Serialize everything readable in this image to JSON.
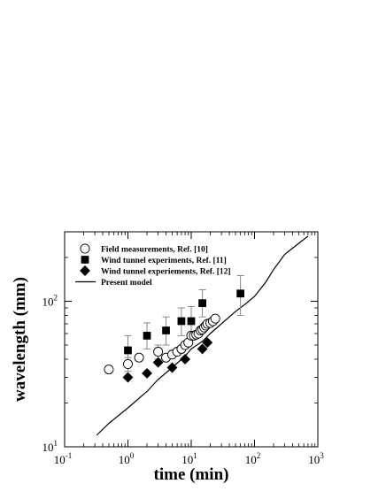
{
  "chart_data": {
    "type": "scatter",
    "xlabel": "time (min)",
    "ylabel": "wavelength (mm)",
    "xscale": "log",
    "yscale": "log",
    "xlim": [
      0.1,
      1000
    ],
    "ylim": [
      10,
      300
    ],
    "x_ticks": [
      {
        "base": "10",
        "exp": "-1"
      },
      {
        "base": "10",
        "exp": "0"
      },
      {
        "base": "10",
        "exp": "1"
      },
      {
        "base": "10",
        "exp": "2"
      },
      {
        "base": "10",
        "exp": "3"
      }
    ],
    "y_ticks": [
      {
        "value": 10,
        "base": "10",
        "exp": "1"
      },
      {
        "value": 100,
        "base": "10",
        "exp": "2"
      }
    ],
    "legend_position": "top-left",
    "series": [
      {
        "name": "Field measurements, Ref. [10]",
        "marker": "open-circle",
        "points": [
          {
            "x": 0.5,
            "y": 34
          },
          {
            "x": 1.0,
            "y": 37,
            "err": [
              33,
              41
            ]
          },
          {
            "x": 1.5,
            "y": 41
          },
          {
            "x": 3.0,
            "y": 45,
            "err": [
              40,
              50
            ]
          },
          {
            "x": 4.0,
            "y": 41
          },
          {
            "x": 5.0,
            "y": 43
          },
          {
            "x": 6.0,
            "y": 45
          },
          {
            "x": 7.0,
            "y": 47
          },
          {
            "x": 8.0,
            "y": 50
          },
          {
            "x": 9.0,
            "y": 52
          },
          {
            "x": 10.0,
            "y": 58
          },
          {
            "x": 11.0,
            "y": 58
          },
          {
            "x": 12.0,
            "y": 59
          },
          {
            "x": 13.0,
            "y": 60
          },
          {
            "x": 14.0,
            "y": 63
          },
          {
            "x": 15.0,
            "y": 64
          },
          {
            "x": 16.0,
            "y": 66
          },
          {
            "x": 17.0,
            "y": 68
          },
          {
            "x": 18.0,
            "y": 70
          },
          {
            "x": 20.0,
            "y": 71
          },
          {
            "x": 22.0,
            "y": 73
          },
          {
            "x": 24.0,
            "y": 76
          }
        ]
      },
      {
        "name": "Wind tunnel experiments, Ref. [11]",
        "marker": "filled-square",
        "points": [
          {
            "x": 1.0,
            "y": 46,
            "err": [
              36,
              58
            ]
          },
          {
            "x": 2.0,
            "y": 58,
            "err": [
              47,
              71
            ]
          },
          {
            "x": 4.0,
            "y": 63,
            "err": [
              50,
              78
            ]
          },
          {
            "x": 7.0,
            "y": 73,
            "err": [
              58,
              90
            ]
          },
          {
            "x": 10.0,
            "y": 73,
            "err": [
              58,
              92
            ]
          },
          {
            "x": 15.0,
            "y": 97,
            "err": [
              78,
              120
            ]
          },
          {
            "x": 60.0,
            "y": 113,
            "err": [
              80,
              150
            ]
          }
        ]
      },
      {
        "name": "Wind tunnel experiements, Ref. [12]",
        "marker": "filled-diamond",
        "points": [
          {
            "x": 1.0,
            "y": 30
          },
          {
            "x": 2.0,
            "y": 32
          },
          {
            "x": 3.0,
            "y": 38
          },
          {
            "x": 5.0,
            "y": 35
          },
          {
            "x": 8.0,
            "y": 40
          },
          {
            "x": 15.0,
            "y": 47
          },
          {
            "x": 18.0,
            "y": 52
          }
        ]
      }
    ],
    "model": {
      "name": "Present model",
      "marker": "line",
      "x": [
        0.32,
        0.5,
        1.0,
        2.0,
        3.0,
        5.0,
        8.0,
        10.0,
        15.0,
        20.0,
        30.0,
        50.0,
        70.0,
        100.0,
        150.0,
        200.0,
        300.0,
        500.0,
        700.0
      ],
      "y": [
        12,
        14.5,
        18.5,
        24,
        29,
        35,
        42,
        47,
        53,
        60,
        70,
        85,
        95,
        108,
        135,
        165,
        210,
        250,
        280
      ]
    }
  }
}
